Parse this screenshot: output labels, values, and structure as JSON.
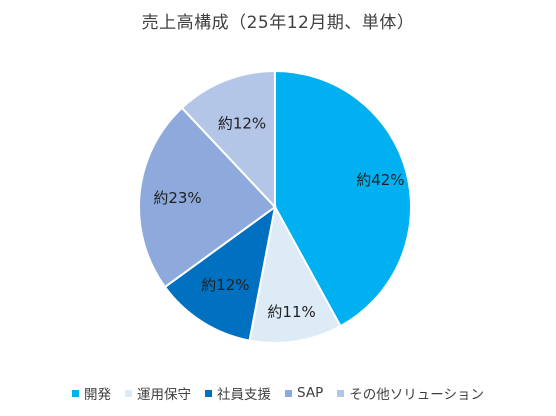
{
  "chart_data": {
    "type": "pie",
    "title": "売上高構成（25年12月期、単体）",
    "categories": [
      "開発",
      "運用保守",
      "社員支援",
      "SAP",
      "その他ソリューション"
    ],
    "values": [
      42,
      11,
      12,
      23,
      12
    ],
    "data_labels": [
      "約42%",
      "約11%",
      "約12%",
      "約23%",
      "約12%"
    ],
    "colors": [
      "#00B0F0",
      "#DDEBF7",
      "#0070C0",
      "#8EA9DB",
      "#B4C6E7"
    ],
    "legend_position": "bottom"
  }
}
